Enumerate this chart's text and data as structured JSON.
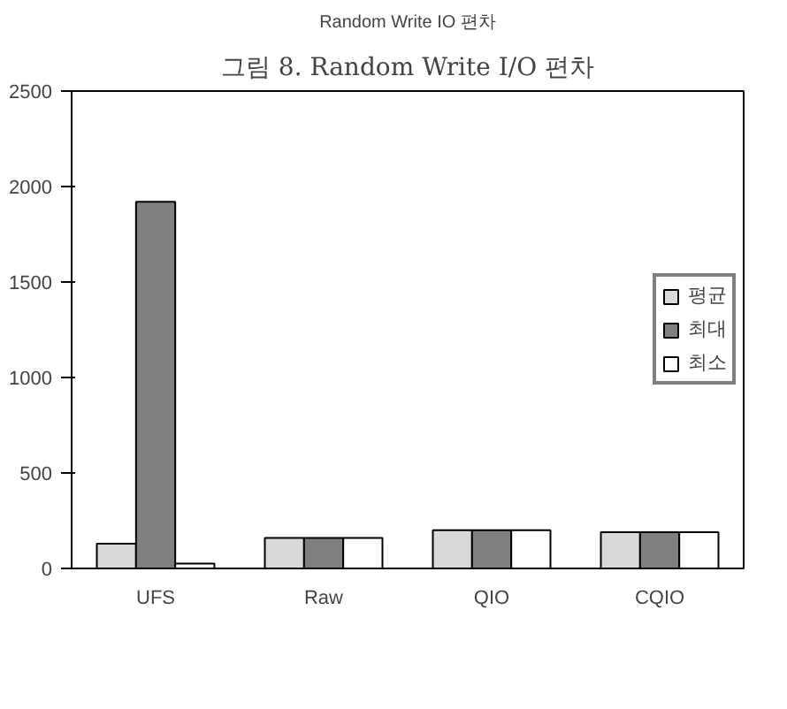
{
  "chart_data": {
    "type": "bar",
    "title": "Random Write IO 편차",
    "subtitle": "그림 8. Random Write I/O 편차",
    "categories": [
      "UFS",
      "Raw",
      "QIO",
      "CQIO"
    ],
    "series": [
      {
        "name": "평균",
        "color": "#d9d9d9",
        "values": [
          130,
          160,
          200,
          190
        ]
      },
      {
        "name": "최대",
        "color": "#7f7f7f",
        "values": [
          1920,
          160,
          200,
          190
        ]
      },
      {
        "name": "최소",
        "color": "#ffffff",
        "values": [
          25,
          160,
          200,
          190
        ]
      }
    ],
    "ylim": [
      0,
      2500
    ],
    "yticks": [
      0,
      500,
      1000,
      1500,
      2000,
      2500
    ],
    "grid": false,
    "legend": "right"
  }
}
